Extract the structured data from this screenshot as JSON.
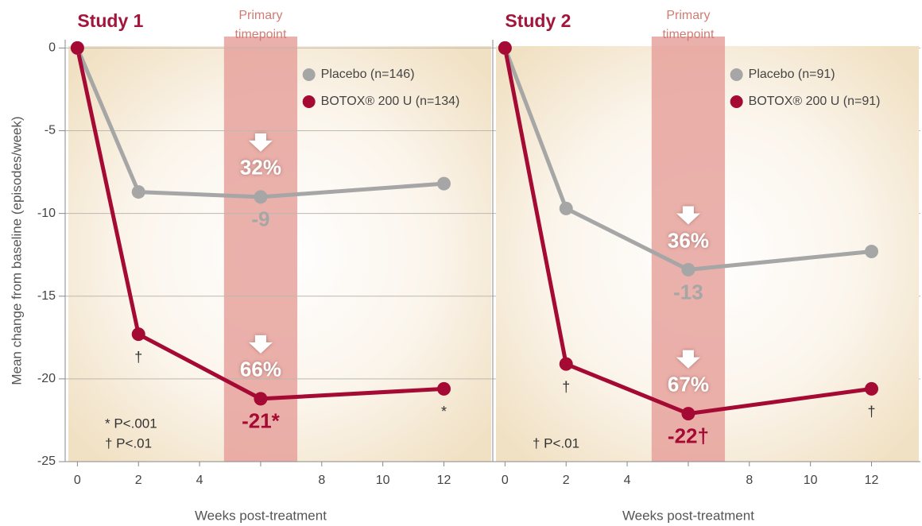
{
  "chart_data": [
    {
      "type": "line",
      "title": "Study 1",
      "y_label": "Mean change from baseline (episodes/week)",
      "x_label": "Weeks post-treatment",
      "x": [
        0,
        2,
        6,
        12
      ],
      "xlim": [
        -0.4,
        13.6
      ],
      "xticks": [
        0,
        2,
        4,
        6,
        8,
        10,
        12
      ],
      "ylim": [
        -25,
        0.5
      ],
      "yticks": [
        -25,
        -20,
        -15,
        -10,
        -5,
        0
      ],
      "grid": true,
      "legend": "upper right",
      "highlight": {
        "x": 6,
        "label_lines": [
          "Primary",
          "timepoint"
        ],
        "color": "#e6a29c"
      },
      "series": [
        {
          "name": "Placebo (n=146)",
          "color": "#a6a6a6",
          "values": [
            0,
            -8.7,
            -9,
            -8.2
          ],
          "value_labels": [
            null,
            null,
            "-9",
            null
          ],
          "reduction_labels": [
            null,
            null,
            "32%",
            null
          ]
        },
        {
          "name": "BOTOX® 200 U (n=134)",
          "color": "#a50a35",
          "values": [
            0,
            -17.3,
            -21.2,
            -20.6
          ],
          "value_labels": [
            null,
            null,
            "-21*",
            null
          ],
          "reduction_labels": [
            null,
            null,
            "66%",
            null
          ],
          "markers": [
            null,
            "†",
            null,
            "*"
          ]
        }
      ],
      "footnotes": [
        "* P<.001",
        "† P<.01"
      ]
    },
    {
      "type": "line",
      "title": "Study 2",
      "x_label": "Weeks post-treatment",
      "x": [
        0,
        2,
        6,
        12
      ],
      "xlim": [
        -0.4,
        13.6
      ],
      "xticks": [
        0,
        2,
        4,
        6,
        8,
        10,
        12
      ],
      "ylim": [
        -25,
        0.5
      ],
      "legend": "upper right",
      "highlight": {
        "x": 6,
        "label_lines": [
          "Primary",
          "timepoint"
        ],
        "color": "#e6a29c"
      },
      "series": [
        {
          "name": "Placebo (n=91)",
          "color": "#a6a6a6",
          "values": [
            0,
            -9.7,
            -13.4,
            -12.3
          ],
          "value_labels": [
            null,
            null,
            "-13",
            null
          ],
          "reduction_labels": [
            null,
            null,
            "36%",
            null
          ]
        },
        {
          "name": "BOTOX® 200 U (n=91)",
          "color": "#a50a35",
          "values": [
            0,
            -19.1,
            -22.1,
            -20.6
          ],
          "value_labels": [
            null,
            null,
            "-22†",
            null
          ],
          "reduction_labels": [
            null,
            null,
            "67%",
            null
          ],
          "markers": [
            null,
            "†",
            null,
            "†"
          ]
        }
      ],
      "footnotes": [
        "† P<.01"
      ]
    }
  ]
}
